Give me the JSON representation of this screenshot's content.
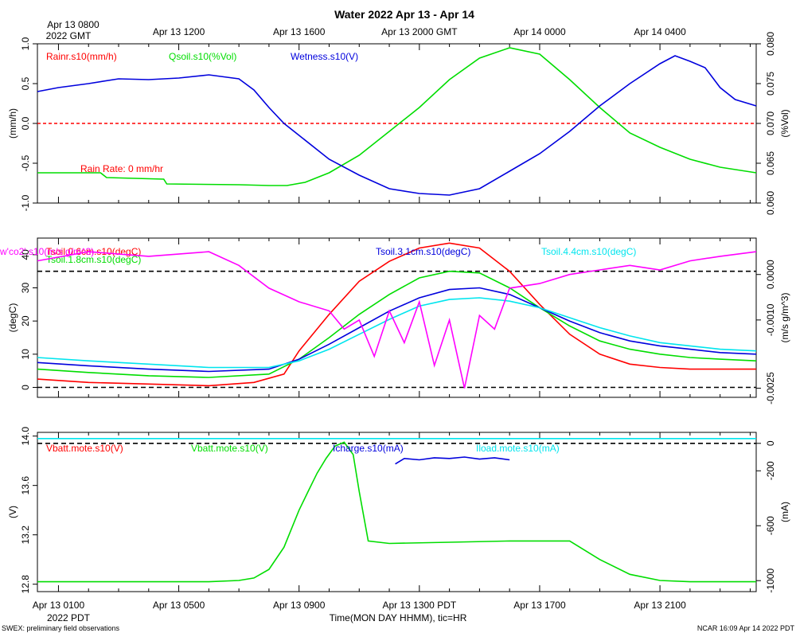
{
  "title": "Water 2022 Apr 13 - Apr 14",
  "gmt_axis": {
    "first_label_top": "Apr 13 0800",
    "first_label_bottom": "2022 GMT",
    "labels": [
      "Apr 13 1200",
      "Apr 13 1600",
      "Apr 13 2000 GMT",
      "Apr 14 0000",
      "Apr 14 0400"
    ]
  },
  "pdt_axis": {
    "labels": [
      "Apr 13 0100",
      "Apr 13 0500",
      "Apr 13 0900",
      "Apr 13 1300 PDT",
      "Apr 13 1700",
      "Apr 13 2100"
    ],
    "year_label": "2022 PDT",
    "xlabel": "Time(MON DAY HHMM), tic=HR"
  },
  "footer": {
    "left": "SWEX: preliminary field observations",
    "right": "NCAR 16:09 Apr 14 2022 PDT"
  },
  "chart_data": [
    {
      "type": "line",
      "panel": "top",
      "x_hours_pdt_range": [
        0.3,
        24.2
      ],
      "ylabel_left": "(mm/h)",
      "ylabel_right": "(%Vol)",
      "ylim_left": [
        -1.0,
        1.0
      ],
      "yticks_left": [
        "-1.0",
        "-0.5",
        "0.0",
        "0.5",
        "1.0"
      ],
      "ylim_right": [
        0.06,
        0.08
      ],
      "yticks_right": [
        "0.060",
        "0.065",
        "0.070",
        "0.075",
        "0.080"
      ],
      "annotation": "Rain Rate: 0 mm/hr",
      "series": [
        {
          "name": "Rainr.s10(mm/h)",
          "color": "#ff0000",
          "axis": "left",
          "x": [
            0.3,
            24.2
          ],
          "y": [
            0,
            0
          ]
        },
        {
          "name": "Qsoil.s10(%Vol)",
          "color": "#00dd00",
          "axis": "right",
          "x": [
            0.3,
            1.5,
            2.4,
            2.6,
            4.5,
            4.6,
            7,
            8,
            8.6,
            9.2,
            10,
            11,
            12,
            13,
            14,
            15,
            16,
            17,
            18,
            19,
            20,
            21,
            22,
            23,
            24.2
          ],
          "y": [
            0.0638,
            0.0638,
            0.0638,
            0.0632,
            0.063,
            0.0624,
            0.0623,
            0.0622,
            0.0622,
            0.0626,
            0.0638,
            0.066,
            0.069,
            0.072,
            0.0755,
            0.0782,
            0.0795,
            0.0787,
            0.0755,
            0.072,
            0.0688,
            0.067,
            0.0655,
            0.0645,
            0.0638
          ]
        },
        {
          "name": "Wetness.s10(V)",
          "color": "#0000dd",
          "axis": "left",
          "x": [
            0.3,
            1,
            2,
            3,
            4,
            5,
            6,
            7,
            7.5,
            8,
            8.5,
            9,
            10,
            11,
            12,
            13,
            14,
            15,
            16,
            17,
            18,
            19,
            20,
            21,
            21.5,
            22,
            22.5,
            23,
            23.5,
            24.2
          ],
          "y": [
            0.4,
            0.45,
            0.5,
            0.56,
            0.55,
            0.57,
            0.61,
            0.56,
            0.42,
            0.2,
            0.0,
            -0.15,
            -0.45,
            -0.65,
            -0.82,
            -0.88,
            -0.9,
            -0.82,
            -0.6,
            -0.38,
            -0.1,
            0.22,
            0.5,
            0.75,
            0.85,
            0.78,
            0.7,
            0.45,
            0.3,
            0.22
          ]
        }
      ]
    },
    {
      "type": "line",
      "panel": "middle",
      "x_hours_pdt_range": [
        0.3,
        24.2
      ],
      "ylabel_left": "(degC)",
      "ylabel_right": "(m/s g/m^3)",
      "ylim_left": [
        -3,
        45
      ],
      "yticks_left": [
        "0",
        "10",
        "20",
        "30",
        "40"
      ],
      "ylim_right": [
        -0.0027,
        0.0008
      ],
      "yticks_right": [
        "-0.0025",
        "-0.0010",
        "0.0000"
      ],
      "series": [
        {
          "name": "Tsoil.0.6cm.s10(degC)",
          "color": "#ff0000",
          "axis": "left",
          "x": [
            0.3,
            2,
            4,
            6,
            7.5,
            8.5,
            9,
            10,
            11,
            12,
            13,
            14,
            15,
            16,
            17,
            18,
            19,
            20,
            21,
            22,
            23,
            24.2
          ],
          "y": [
            2.5,
            1.5,
            1,
            0.5,
            1.5,
            4,
            11,
            22,
            32,
            38,
            42,
            43.5,
            42,
            35,
            25,
            16,
            10,
            7,
            6,
            5.5,
            5.5,
            5.5
          ]
        },
        {
          "name": "Tsoil.1.8cm.s10(degC)",
          "color": "#00dd00",
          "axis": "left",
          "x": [
            0.3,
            2,
            4,
            6,
            8,
            9,
            10,
            11,
            12,
            13,
            14,
            15,
            16,
            17,
            18,
            19,
            20,
            21,
            22,
            23,
            24.2
          ],
          "y": [
            5.5,
            4.5,
            3.5,
            3,
            4,
            8.5,
            15,
            22,
            28,
            33,
            35,
            34.5,
            30,
            24,
            18.5,
            14,
            11.5,
            10,
            9,
            8.5,
            8
          ]
        },
        {
          "name": "Tsoil.3.1cm.s10(degC)",
          "color": "#0000dd",
          "axis": "left",
          "x": [
            0.3,
            2,
            4,
            6,
            8,
            9,
            10,
            11,
            12,
            13,
            14,
            15,
            16,
            17,
            18,
            19,
            20,
            21,
            22,
            23,
            24.2
          ],
          "y": [
            7.5,
            6.5,
            5.5,
            4.8,
            5.5,
            8.5,
            13,
            18,
            23,
            27,
            29.5,
            30,
            28,
            24,
            20,
            16.5,
            14,
            12.5,
            11.5,
            10.5,
            10
          ]
        },
        {
          "name": "Tsoil.4.4cm.s10(degC)",
          "color": "#00e5ee",
          "axis": "left",
          "x": [
            0.3,
            2,
            4,
            6,
            8,
            9,
            10,
            11,
            12,
            13,
            14,
            15,
            16,
            17,
            18,
            19,
            20,
            21,
            22,
            23,
            24.2
          ],
          "y": [
            9,
            8,
            7,
            6,
            6,
            8,
            11.5,
            16,
            20.5,
            24.5,
            26.5,
            27,
            26,
            24,
            21,
            18,
            15.5,
            13.5,
            12.5,
            11.5,
            11
          ]
        },
        {
          "name": "w'co2'.s10(m/s g/m^3)",
          "color": "#ff00ff",
          "axis": "right",
          "x": [
            0.3,
            2,
            4,
            6,
            7,
            8,
            9,
            10,
            10.5,
            11,
            11.5,
            12,
            12.5,
            13,
            13.5,
            14,
            14.5,
            15,
            15.5,
            16,
            17,
            18,
            19,
            20,
            21,
            22,
            23,
            24.2
          ],
          "y": [
            0.0003,
            0.0005,
            0.0004,
            0.0005,
            0.0002,
            -0.0003,
            -0.0006,
            -0.0008,
            -0.0012,
            -0.001,
            -0.0018,
            -0.0008,
            -0.0015,
            -0.0006,
            -0.002,
            -0.001,
            -0.0025,
            -0.0009,
            -0.0012,
            -0.0003,
            -0.0002,
            0.0,
            0.0001,
            0.0002,
            0.0001,
            0.0003,
            0.0004,
            0.0005
          ]
        }
      ],
      "reference_lines_left": [
        0,
        35
      ]
    },
    {
      "type": "line",
      "panel": "bottom",
      "x_hours_pdt_range": [
        0.3,
        24.2
      ],
      "ylabel_left": "(V)",
      "ylabel_right": "(mA)",
      "ylim_left": [
        12.74,
        14.03
      ],
      "yticks_left": [
        "12.8",
        "13.2",
        "13.6",
        "14.0"
      ],
      "ylim_right": [
        -1080,
        80
      ],
      "yticks_right": [
        "-1000",
        "-600",
        "-200",
        "0"
      ],
      "series": [
        {
          "name": "Vbatt.mote.s10(V)",
          "color": "#ff0000",
          "axis": "left",
          "x": [],
          "y": []
        },
        {
          "name": "Vbatt.mote.s10(V)",
          "color": "#00dd00",
          "axis": "left",
          "x": [
            0.3,
            2,
            3,
            4,
            5,
            6,
            7,
            7.5,
            8,
            8.5,
            9,
            9.3,
            9.6,
            9.9,
            10.2,
            10.5,
            10.8,
            11,
            11.3,
            12,
            14,
            16,
            18,
            19,
            20,
            21,
            22,
            23,
            24.2
          ],
          "y": [
            12.82,
            12.82,
            12.82,
            12.82,
            12.82,
            12.82,
            12.83,
            12.85,
            12.92,
            13.1,
            13.4,
            13.55,
            13.7,
            13.82,
            13.92,
            13.95,
            13.85,
            13.55,
            13.15,
            13.13,
            13.14,
            13.15,
            13.15,
            13.0,
            12.88,
            12.83,
            12.82,
            12.82,
            12.82
          ]
        },
        {
          "name": "Icharge.s10(mA)",
          "color": "#0000dd",
          "axis": "right",
          "x": [
            12.2,
            12.5,
            13,
            13.5,
            14,
            14.5,
            15,
            15.5,
            16
          ],
          "y": [
            -150,
            -110,
            -120,
            -105,
            -110,
            -100,
            -115,
            -105,
            -120
          ]
        },
        {
          "name": "Iload.mote.s10(mA)",
          "color": "#00e5ee",
          "axis": "right",
          "x": [
            0.3,
            4,
            8,
            12,
            16,
            20,
            24.2
          ],
          "y": [
            35,
            35,
            35,
            35,
            35,
            35,
            35
          ]
        }
      ],
      "reference_lines_right": [
        0
      ]
    }
  ]
}
